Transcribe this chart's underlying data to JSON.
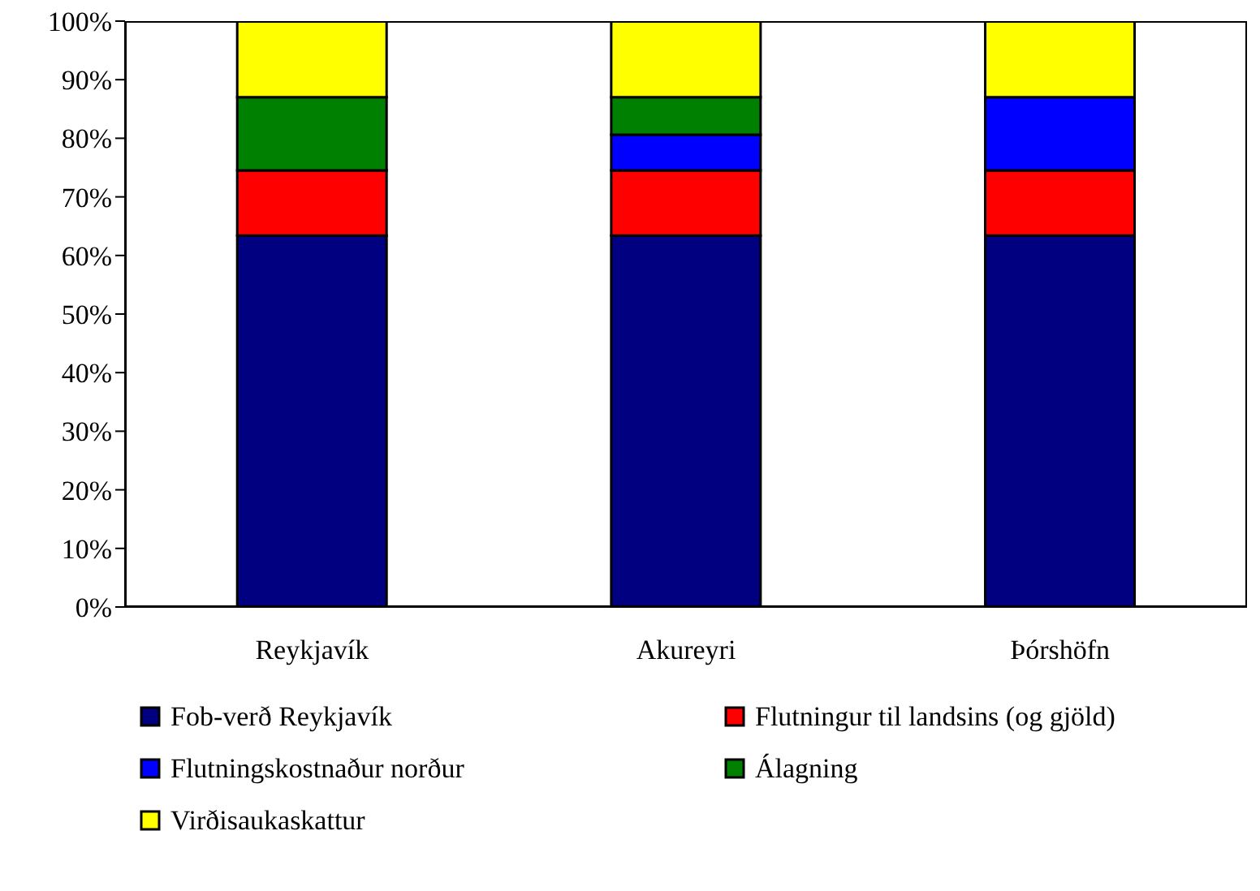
{
  "chart_data": {
    "type": "bar",
    "stacked": true,
    "categories": [
      "Reykjavík",
      "Akureyri",
      "Þórshöfn"
    ],
    "series": [
      {
        "name": "Fob-verð Reykjavík",
        "color": "#000080",
        "values": [
          63.4,
          63.4,
          63.4
        ]
      },
      {
        "name": "Flutningur til landsins (og gjöld)",
        "color": "#ff0000",
        "values": [
          11.1,
          11.1,
          11.1
        ]
      },
      {
        "name": "Flutningskostnaður norður",
        "color": "#0000ff",
        "values": [
          0,
          6.1,
          12.5
        ]
      },
      {
        "name": "Álagning",
        "color": "#008000",
        "values": [
          12.5,
          6.4,
          0
        ]
      },
      {
        "name": "Virðisaukaskattur",
        "color": "#ffff00",
        "values": [
          13,
          13,
          13
        ]
      }
    ],
    "ylim": [
      0,
      100
    ],
    "yticks": [
      {
        "value": 0,
        "label": "0%"
      },
      {
        "value": 10,
        "label": "10%"
      },
      {
        "value": 20,
        "label": "20%"
      },
      {
        "value": 30,
        "label": "30%"
      },
      {
        "value": 40,
        "label": "40%"
      },
      {
        "value": 50,
        "label": "50%"
      },
      {
        "value": 60,
        "label": "60%"
      },
      {
        "value": 70,
        "label": "70%"
      },
      {
        "value": 80,
        "label": "80%"
      },
      {
        "value": 90,
        "label": "90%"
      },
      {
        "value": 100,
        "label": "100%"
      }
    ],
    "grid": false,
    "legend": "bottom"
  }
}
